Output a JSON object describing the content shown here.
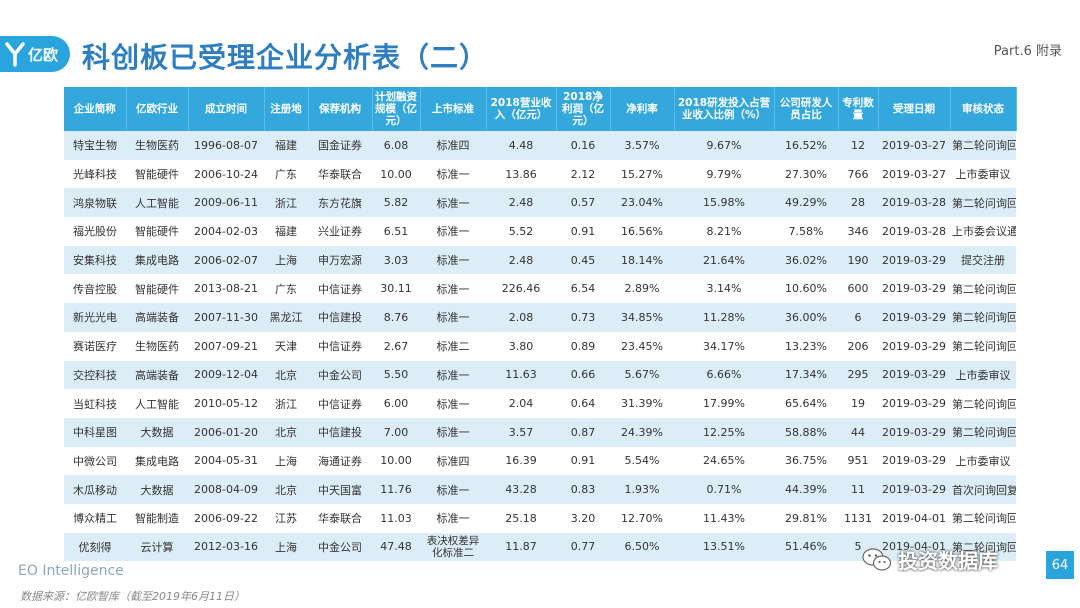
{
  "header": {
    "logo_text": "亿欧",
    "title": "科创板已受理企业分析表（二）",
    "part": "Part.6 附录"
  },
  "table": {
    "columns": [
      "企业简称",
      "亿欧行业",
      "成立时间",
      "注册地",
      "保荐机构",
      "计划融资规模（亿元）",
      "上市标准",
      "2018营业收入（亿元）",
      "2018净利润（亿元）",
      "净利率",
      "2018研发投入占营业收入比例（%）",
      "公司研发人员占比",
      "专利数量",
      "受理日期",
      "审核状态"
    ],
    "rows": [
      [
        "特宝生物",
        "生物医药",
        "1996-08-07",
        "福建",
        "国金证券",
        "6.08",
        "标准四",
        "4.48",
        "0.16",
        "3.57%",
        "9.67%",
        "16.52%",
        "12",
        "2019-03-27",
        "第二轮问询回复"
      ],
      [
        "光峰科技",
        "智能硬件",
        "2006-10-24",
        "广东",
        "华泰联合",
        "10.00",
        "标准一",
        "13.86",
        "2.12",
        "15.27%",
        "9.79%",
        "27.30%",
        "766",
        "2019-03-27",
        "上市委审议"
      ],
      [
        "鸿泉物联",
        "人工智能",
        "2009-06-11",
        "浙江",
        "东方花旗",
        "5.82",
        "标准一",
        "2.48",
        "0.57",
        "23.04%",
        "15.98%",
        "49.29%",
        "28",
        "2019-03-28",
        "第二轮问询回复"
      ],
      [
        "福光股份",
        "智能硬件",
        "2004-02-03",
        "福建",
        "兴业证券",
        "6.51",
        "标准一",
        "5.52",
        "0.91",
        "16.56%",
        "8.21%",
        "7.58%",
        "346",
        "2019-03-28",
        "上市委会议通过"
      ],
      [
        "安集科技",
        "集成电路",
        "2006-02-07",
        "上海",
        "申万宏源",
        "3.03",
        "标准一",
        "2.48",
        "0.45",
        "18.14%",
        "21.64%",
        "36.02%",
        "190",
        "2019-03-29",
        "提交注册"
      ],
      [
        "传音控股",
        "智能硬件",
        "2013-08-21",
        "广东",
        "中信证券",
        "30.11",
        "标准一",
        "226.46",
        "6.54",
        "2.89%",
        "3.14%",
        "10.60%",
        "600",
        "2019-03-29",
        "第二轮问询回复"
      ],
      [
        "新光光电",
        "高端装备",
        "2007-11-30",
        "黑龙江",
        "中信建投",
        "8.76",
        "标准一",
        "2.08",
        "0.73",
        "34.85%",
        "11.28%",
        "36.00%",
        "6",
        "2019-03-29",
        "第二轮问询回复"
      ],
      [
        "赛诺医疗",
        "生物医药",
        "2007-09-21",
        "天津",
        "中信证券",
        "2.67",
        "标准二",
        "3.80",
        "0.89",
        "23.45%",
        "34.17%",
        "13.23%",
        "206",
        "2019-03-29",
        "第二轮问询回复"
      ],
      [
        "交控科技",
        "高端装备",
        "2009-12-04",
        "北京",
        "中金公司",
        "5.50",
        "标准一",
        "11.63",
        "0.66",
        "5.67%",
        "6.66%",
        "17.34%",
        "295",
        "2019-03-29",
        "上市委审议"
      ],
      [
        "当虹科技",
        "人工智能",
        "2010-05-12",
        "浙江",
        "中信证券",
        "6.00",
        "标准一",
        "2.04",
        "0.64",
        "31.39%",
        "17.99%",
        "65.64%",
        "19",
        "2019-03-29",
        "第二轮问询回复"
      ],
      [
        "中科星图",
        "大数据",
        "2006-01-20",
        "北京",
        "中信建投",
        "7.00",
        "标准一",
        "3.57",
        "0.87",
        "24.39%",
        "12.25%",
        "58.88%",
        "44",
        "2019-03-29",
        "第二轮问询回复"
      ],
      [
        "中微公司",
        "集成电路",
        "2004-05-31",
        "上海",
        "海通证券",
        "10.00",
        "标准四",
        "16.39",
        "0.91",
        "5.54%",
        "24.65%",
        "36.75%",
        "951",
        "2019-03-29",
        "上市委审议"
      ],
      [
        "木瓜移动",
        "大数据",
        "2008-04-09",
        "北京",
        "中天国富",
        "11.76",
        "标准一",
        "43.28",
        "0.83",
        "1.93%",
        "0.71%",
        "44.39%",
        "11",
        "2019-03-29",
        "首次问询回复"
      ],
      [
        "博众精工",
        "智能制造",
        "2006-09-22",
        "江苏",
        "华泰联合",
        "11.03",
        "标准一",
        "25.18",
        "3.20",
        "12.70%",
        "11.43%",
        "29.81%",
        "1131",
        "2019-04-01",
        "第二轮问询回复"
      ],
      [
        "优刻得",
        "云计算",
        "2012-03-16",
        "上海",
        "中金公司",
        "47.48",
        "表决权差异化标准二",
        "11.87",
        "0.77",
        "6.50%",
        "13.51%",
        "51.46%",
        "5",
        "2019-04-01",
        "第二轮问询回复"
      ]
    ]
  },
  "footer": {
    "brand": "EO Intelligence",
    "source": "数据来源：亿欧智库（截至2019年6月11日）",
    "watermark": "投资数据库",
    "page_number": "64"
  },
  "colors": {
    "accent": "#2aa4dc",
    "header_bg": "#34a8dd",
    "row_stripe": "#dcedf8",
    "title": "#2f7ec0"
  }
}
